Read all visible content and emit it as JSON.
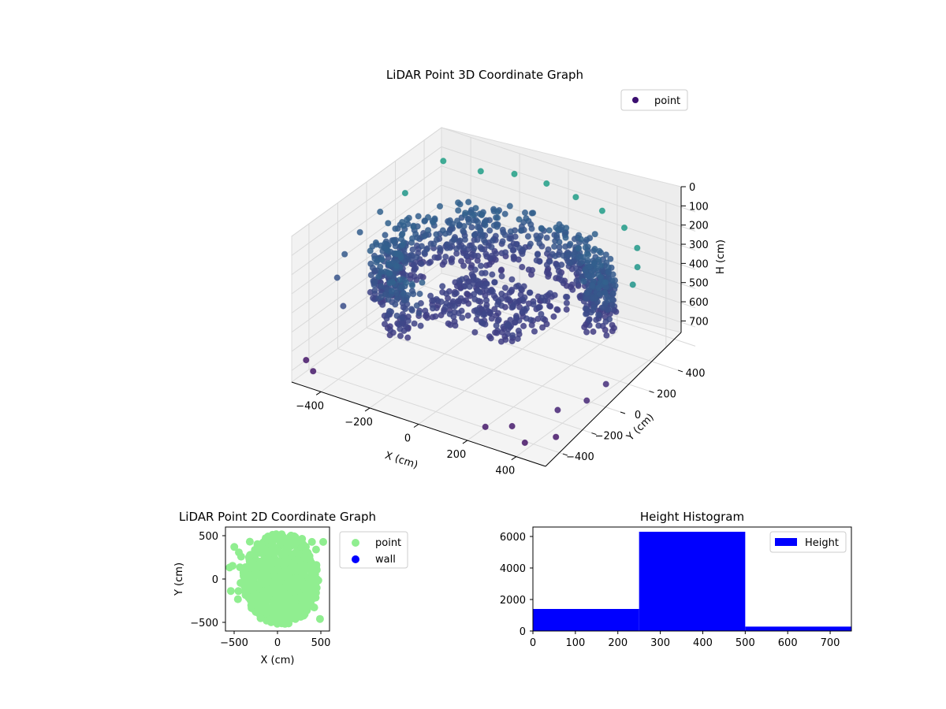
{
  "chart_data": [
    {
      "type": "scatter",
      "title": "LiDAR Point 3D Coordinate Graph",
      "xlabel": "X (cm)",
      "ylabel": "Y (cm)",
      "zlabel": "H (cm)",
      "xlim": [
        -520,
        520
      ],
      "ylim": [
        -520,
        520
      ],
      "zlim": [
        0,
        760
      ],
      "z_inverted": true,
      "x_ticks": [
        -400,
        -200,
        0,
        200,
        400
      ],
      "y_ticks": [
        -400,
        -200,
        0,
        200,
        400
      ],
      "z_ticks": [
        0,
        100,
        200,
        300,
        400,
        500,
        600,
        700
      ],
      "legend": {
        "placement": "top-right",
        "entries": [
          "point"
        ]
      },
      "colormap": "viridis",
      "legend_color": "#3b0f70",
      "series": [
        {
          "name": "point",
          "description_points": "dense curved wall arc of points at height ~250-500 cm plus sparse outliers",
          "arc": {
            "radius": 380,
            "start_deg": 10,
            "end_deg": 250,
            "h_range": [
              180,
              470
            ]
          },
          "points": [
            [
              -430,
              380,
              60
            ],
            [
              -300,
              420,
              80
            ],
            [
              -180,
              450,
              60
            ],
            [
              -60,
              470,
              70
            ],
            [
              60,
              470,
              90
            ],
            [
              180,
              450,
              100
            ],
            [
              300,
              400,
              110
            ],
            [
              400,
              320,
              130
            ],
            [
              460,
              220,
              150
            ],
            [
              500,
              120,
              170
            ],
            [
              -480,
              200,
              150
            ],
            [
              -500,
              60,
              180
            ],
            [
              -500,
              -80,
              210
            ],
            [
              -480,
              -220,
              240
            ],
            [
              -440,
              -340,
              280
            ],
            [
              -350,
              -450,
              330
            ],
            [
              440,
              -300,
              620
            ],
            [
              480,
              -380,
              700
            ],
            [
              400,
              -460,
              720
            ],
            [
              500,
              -200,
              600
            ],
            [
              330,
              -430,
              680
            ],
            [
              250,
              -480,
              690
            ],
            [
              520,
              -100,
              560
            ],
            [
              -520,
              -420,
              700
            ],
            [
              -450,
              -490,
              690
            ]
          ]
        }
      ]
    },
    {
      "type": "scatter",
      "title": "LiDAR Point 2D Coordinate Graph",
      "xlabel": "X (cm)",
      "ylabel": "Y (cm)",
      "xlim": [
        -600,
        600
      ],
      "ylim": [
        -600,
        600
      ],
      "x_ticks": [
        -500,
        0,
        500
      ],
      "y_ticks": [
        -500,
        0,
        500
      ],
      "legend": {
        "placement": "outside-right",
        "entries": [
          "point",
          "wall"
        ]
      },
      "series": [
        {
          "name": "point",
          "color": "#90ee90",
          "description_points": "large filled blob of points roughly within radius 450 cm, denser at positive X"
        },
        {
          "name": "wall",
          "color": "#0000ff",
          "points": []
        }
      ]
    },
    {
      "type": "bar",
      "subtype": "histogram",
      "title": "Height Histogram",
      "xlim": [
        0,
        750
      ],
      "ylim": [
        0,
        6600
      ],
      "x_ticks": [
        0,
        100,
        200,
        300,
        400,
        500,
        600,
        700
      ],
      "y_ticks": [
        0,
        2000,
        4000,
        6000
      ],
      "legend": {
        "placement": "top-right",
        "entries": [
          "Height"
        ]
      },
      "series": [
        {
          "name": "Height",
          "color": "#0000ff",
          "bins": [
            [
              0,
              250,
              1400
            ],
            [
              250,
              500,
              6300
            ],
            [
              500,
              750,
              280
            ]
          ]
        }
      ]
    }
  ]
}
